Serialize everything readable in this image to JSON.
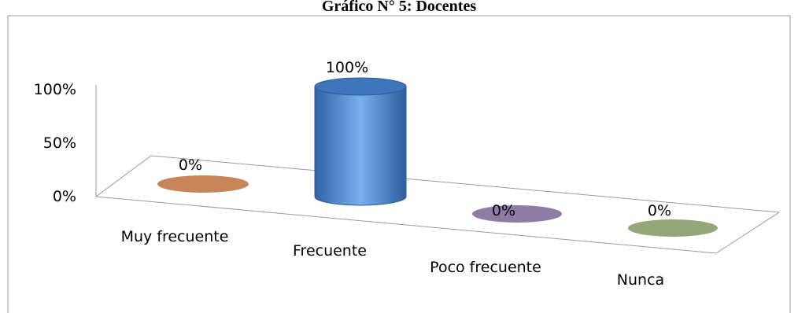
{
  "chart_data": {
    "type": "bar",
    "title": "Gráfico N° 5: Docentes",
    "categories": [
      "Muy frecuente",
      "Frecuente",
      "Poco frecuente",
      "Nunca"
    ],
    "values": [
      0,
      100,
      0,
      0
    ],
    "data_labels": [
      "0%",
      "100%",
      "0%",
      "0%"
    ],
    "y_ticks": [
      "0%",
      "50%",
      "100%"
    ],
    "ylim": [
      0,
      100
    ],
    "xlabel": "",
    "ylabel": "",
    "grid": false,
    "legend": "none",
    "colors": [
      "#c8855a",
      "#4f86c6",
      "#8e7ca6",
      "#94a67a"
    ]
  }
}
